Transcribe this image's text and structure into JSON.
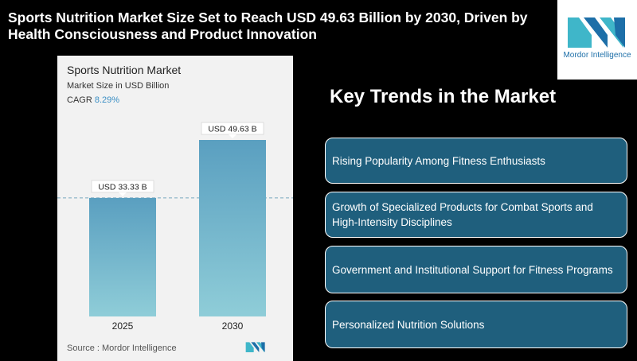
{
  "headline": "Sports Nutrition Market Size Set to Reach USD 49.63 Billion by 2030, Driven by Health Consciousness and Product Innovation",
  "brand": {
    "name": "Mordor Intelligence",
    "color": "#1d6fa8",
    "accent": "#3fb6c9"
  },
  "chart_card": {
    "title": "Sports Nutrition Market",
    "subtitle": "Market Size in USD Billion",
    "cagr_label": "CAGR",
    "cagr_value": "8.29%",
    "source": "Source :  Mordor Intelligence"
  },
  "chart_data": {
    "type": "bar",
    "title": "Sports Nutrition Market",
    "ylabel": "Market Size in USD Billion",
    "categories": [
      "2025",
      "2030"
    ],
    "values": [
      33.33,
      49.63
    ],
    "data_labels": [
      "USD 33.33 B",
      "USD 49.63 B"
    ],
    "ylim": [
      0,
      55
    ],
    "grid": false,
    "colors": {
      "bar_top": "#5a9fc0",
      "bar_bottom": "#8fcdd8",
      "reference_line": "#7aa8c0"
    }
  },
  "trends": {
    "title": "Key Trends in the Market",
    "items": [
      "Rising Popularity Among Fitness Enthusiasts",
      "Growth of Specialized Products for Combat Sports and High-Intensity Disciplines",
      "Government and Institutional Support for Fitness Programs",
      "Personalized Nutrition Solutions"
    ],
    "box_color": "#1f5f7d"
  }
}
